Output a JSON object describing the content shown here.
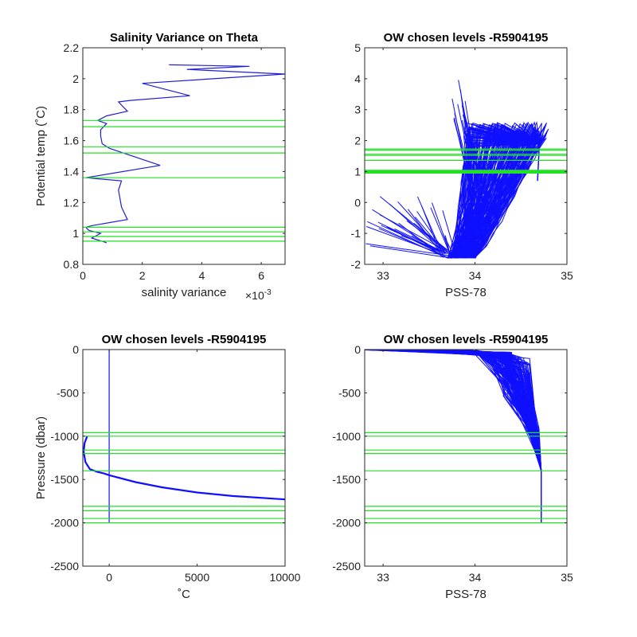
{
  "chart_data": [
    {
      "id": "p1",
      "type": "line",
      "title": "Salinity Variance on Theta",
      "xlabel": "salinity variance",
      "xexponent": "×10",
      "xexponent_power": "-3",
      "ylabel": "Potential temp (˚C)",
      "xlim": [
        0,
        6.8
      ],
      "ylim": [
        0.8,
        2.2
      ],
      "xticks": [
        0,
        2,
        4,
        6
      ],
      "xtick_labels": [
        "0",
        "2",
        "4",
        "6"
      ],
      "yticks": [
        0.8,
        1,
        1.2,
        1.4,
        1.6,
        1.8,
        2,
        2.2
      ],
      "ytick_labels": [
        "0.8",
        "1",
        "1.2",
        "1.4",
        "1.6",
        "1.8",
        "2",
        "2.2"
      ],
      "colors": {
        "line": "#1f1fd0",
        "levels": "#22e022"
      },
      "chosen_levels": [
        0.95,
        0.98,
        1.01,
        1.04,
        1.36,
        1.52,
        1.56,
        1.69,
        1.73
      ],
      "series": [
        {
          "x": [
            0.8,
            0.3,
            0.6,
            0.2,
            0.1,
            0.3,
            1.5,
            1.3,
            1.2,
            1.3,
            0.1,
            2.6,
            0.9,
            0.65,
            0.6,
            0.6,
            0.8,
            0.5,
            0.8,
            1.5,
            1.2,
            1.6,
            3.6,
            2.0,
            6.8,
            3.5,
            5.6,
            2.9
          ],
          "y": [
            0.94,
            0.97,
            1.0,
            1.02,
            1.04,
            1.05,
            1.09,
            1.17,
            1.28,
            1.34,
            1.36,
            1.44,
            1.55,
            1.58,
            1.63,
            1.67,
            1.71,
            1.73,
            1.76,
            1.79,
            1.85,
            1.86,
            1.89,
            1.97,
            2.03,
            2.06,
            2.08,
            2.09
          ]
        }
      ]
    },
    {
      "id": "p2",
      "type": "line",
      "title": "OW chosen levels -R5904195",
      "xlabel": "PSS-78",
      "ylabel": "",
      "xlim": [
        32.8,
        35
      ],
      "ylim": [
        -2,
        5
      ],
      "xticks": [
        33,
        34,
        35
      ],
      "xtick_labels": [
        "33",
        "34",
        "35"
      ],
      "yticks": [
        -2,
        -1,
        0,
        1,
        2,
        3,
        4,
        5
      ],
      "ytick_labels": [
        "-2",
        "-1",
        "0",
        "1",
        "2",
        "3",
        "4",
        "5"
      ],
      "colors": {
        "line": "#1010ff",
        "levels": "#22e022"
      },
      "chosen_levels": [
        0.95,
        0.98,
        1.01,
        1.04,
        1.36,
        1.52,
        1.56,
        1.69,
        1.73
      ],
      "series_note": "dense T-S profiles"
    },
    {
      "id": "p3",
      "type": "line",
      "title": "OW chosen levels -R5904195",
      "xlabel": "˚C",
      "ylabel": "Pressure (dbar)",
      "xlim": [
        -1500,
        10000
      ],
      "ylim": [
        -2500,
        0
      ],
      "xticks": [
        0,
        5000,
        10000
      ],
      "xtick_labels": [
        "0",
        "5000",
        "10000"
      ],
      "yticks": [
        -2500,
        -2000,
        -1500,
        -1000,
        -500,
        0
      ],
      "ytick_labels": [
        "-2500",
        "-2000",
        "-1500",
        "-1000",
        "-500",
        "0"
      ],
      "colors": {
        "line": "#1010ff",
        "levels": "#22e022"
      },
      "chosen_levels": [
        -960,
        -1000,
        -1160,
        -1200,
        -1400,
        -1810,
        -1860,
        -1950,
        -2000
      ],
      "series": [
        {
          "x": [
            0,
            0
          ],
          "y": [
            0,
            -2000
          ]
        },
        {
          "x": [
            -1250,
            -1400,
            -1450,
            -1350,
            -1100,
            -700,
            -300,
            0,
            1500,
            3000,
            5000,
            7000,
            10000
          ],
          "y": [
            -1000,
            -1080,
            -1180,
            -1300,
            -1380,
            -1410,
            -1430,
            -1450,
            -1530,
            -1590,
            -1650,
            -1690,
            -1730
          ]
        }
      ]
    },
    {
      "id": "p4",
      "type": "line",
      "title": "OW chosen levels -R5904195",
      "xlabel": "PSS-78",
      "ylabel": "",
      "xlim": [
        32.8,
        35
      ],
      "ylim": [
        -2500,
        0
      ],
      "xticks": [
        33,
        34,
        35
      ],
      "xtick_labels": [
        "33",
        "34",
        "35"
      ],
      "yticks": [
        -2500,
        -2000,
        -1500,
        -1000,
        -500,
        0
      ],
      "ytick_labels": [
        "-2500",
        "-2000",
        "-1500",
        "-1000",
        "-500",
        "0"
      ],
      "colors": {
        "line": "#1010ff",
        "levels": "#22e022"
      },
      "chosen_levels": [
        -960,
        -1000,
        -1160,
        -1200,
        -1400,
        -1810,
        -1860,
        -1950,
        -2000
      ],
      "series_note": "dense salinity-pressure profiles"
    }
  ]
}
